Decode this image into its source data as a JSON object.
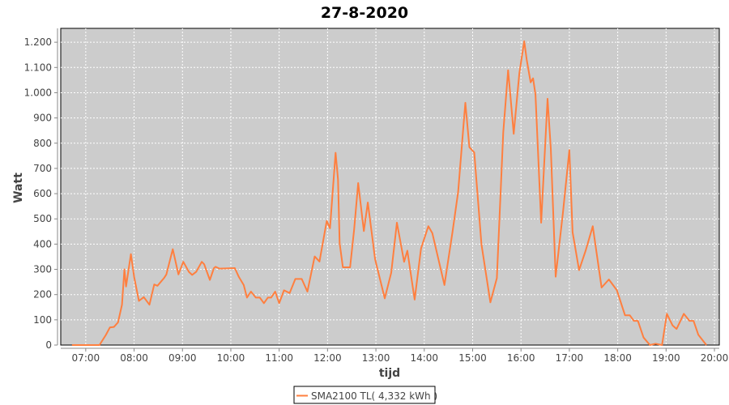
{
  "chart_data": {
    "type": "line",
    "title": "27-8-2020",
    "xlabel": "tijd",
    "ylabel": "Watt",
    "xlim": [
      "06:29",
      "20:06"
    ],
    "ylim": [
      0,
      1255
    ],
    "x_ticks": [
      "07:00",
      "08:00",
      "09:00",
      "10:00",
      "11:00",
      "12:00",
      "13:00",
      "14:00",
      "15:00",
      "16:00",
      "17:00",
      "18:00",
      "19:00",
      "20:00"
    ],
    "y_ticks": [
      0,
      100,
      200,
      300,
      400,
      500,
      600,
      700,
      800,
      900,
      1000,
      1100,
      1200
    ],
    "y_tick_labels": [
      "0",
      "100",
      "200",
      "300",
      "400",
      "500",
      "600",
      "700",
      "800",
      "900",
      "1.000",
      "1.100",
      "1.200"
    ],
    "grid": true,
    "legend_position": "bottom",
    "plot_background": "#cccccc",
    "series": [
      {
        "name": "SMA2100 TL( 4,332 kWh )",
        "color": "#ff7f3f",
        "points": [
          [
            "06:43",
            0
          ],
          [
            "07:17",
            0
          ],
          [
            "07:25",
            40
          ],
          [
            "07:30",
            70
          ],
          [
            "07:35",
            72
          ],
          [
            "07:40",
            90
          ],
          [
            "07:45",
            160
          ],
          [
            "07:48",
            300
          ],
          [
            "07:50",
            232
          ],
          [
            "07:56",
            360
          ],
          [
            "08:00",
            270
          ],
          [
            "08:06",
            175
          ],
          [
            "08:12",
            190
          ],
          [
            "08:19",
            160
          ],
          [
            "08:25",
            240
          ],
          [
            "08:29",
            235
          ],
          [
            "08:37",
            265
          ],
          [
            "08:40",
            280
          ],
          [
            "08:48",
            380
          ],
          [
            "08:55",
            280
          ],
          [
            "09:01",
            330
          ],
          [
            "09:08",
            290
          ],
          [
            "09:12",
            278
          ],
          [
            "09:17",
            290
          ],
          [
            "09:24",
            330
          ],
          [
            "09:27",
            320
          ],
          [
            "09:34",
            258
          ],
          [
            "09:39",
            305
          ],
          [
            "09:41",
            310
          ],
          [
            "09:46",
            303
          ],
          [
            "10:05",
            305
          ],
          [
            "10:10",
            270
          ],
          [
            "10:16",
            238
          ],
          [
            "10:20",
            188
          ],
          [
            "10:25",
            212
          ],
          [
            "10:31",
            188
          ],
          [
            "10:36",
            188
          ],
          [
            "10:41",
            166
          ],
          [
            "10:46",
            188
          ],
          [
            "10:50",
            188
          ],
          [
            "10:55",
            212
          ],
          [
            "11:00",
            166
          ],
          [
            "11:06",
            217
          ],
          [
            "11:13",
            206
          ],
          [
            "11:20",
            262
          ],
          [
            "11:28",
            262
          ],
          [
            "11:35",
            212
          ],
          [
            "11:44",
            351
          ],
          [
            "11:50",
            331
          ],
          [
            "11:59",
            492
          ],
          [
            "12:03",
            463
          ],
          [
            "12:10",
            762
          ],
          [
            "12:13",
            656
          ],
          [
            "12:15",
            404
          ],
          [
            "12:19",
            308
          ],
          [
            "12:28",
            308
          ],
          [
            "12:33",
            458
          ],
          [
            "12:38",
            642
          ],
          [
            "12:45",
            452
          ],
          [
            "12:50",
            565
          ],
          [
            "12:59",
            340
          ],
          [
            "13:11",
            185
          ],
          [
            "13:19",
            287
          ],
          [
            "13:26",
            485
          ],
          [
            "13:35",
            330
          ],
          [
            "13:39",
            374
          ],
          [
            "13:48",
            180
          ],
          [
            "13:56",
            383
          ],
          [
            "14:05",
            471
          ],
          [
            "14:10",
            444
          ],
          [
            "14:25",
            238
          ],
          [
            "14:35",
            447
          ],
          [
            "14:42",
            607
          ],
          [
            "14:49",
            886
          ],
          [
            "14:51",
            960
          ],
          [
            "14:56",
            784
          ],
          [
            "15:02",
            763
          ],
          [
            "15:11",
            399
          ],
          [
            "15:22",
            169
          ],
          [
            "15:30",
            265
          ],
          [
            "15:38",
            843
          ],
          [
            "15:44",
            1089
          ],
          [
            "15:47",
            982
          ],
          [
            "15:51",
            837
          ],
          [
            "15:58",
            1078
          ],
          [
            "16:04",
            1204
          ],
          [
            "16:07",
            1132
          ],
          [
            "16:12",
            1041
          ],
          [
            "16:15",
            1057
          ],
          [
            "16:18",
            992
          ],
          [
            "16:25",
            485
          ],
          [
            "16:33",
            976
          ],
          [
            "16:37",
            779
          ],
          [
            "16:43",
            271
          ],
          [
            "16:52",
            522
          ],
          [
            "17:00",
            773
          ],
          [
            "17:04",
            447
          ],
          [
            "17:12",
            297
          ],
          [
            "17:20",
            372
          ],
          [
            "17:29",
            471
          ],
          [
            "17:40",
            228
          ],
          [
            "17:49",
            260
          ],
          [
            "17:59",
            217
          ],
          [
            "18:09",
            118
          ],
          [
            "18:15",
            118
          ],
          [
            "18:20",
            96
          ],
          [
            "18:25",
            96
          ],
          [
            "18:32",
            30
          ],
          [
            "18:40",
            0
          ],
          [
            "18:47",
            5
          ],
          [
            "18:55",
            0
          ],
          [
            "19:01",
            124
          ],
          [
            "19:08",
            78
          ],
          [
            "19:13",
            64
          ],
          [
            "19:22",
            124
          ],
          [
            "19:29",
            96
          ],
          [
            "19:34",
            96
          ],
          [
            "19:40",
            41
          ],
          [
            "19:50",
            0
          ]
        ]
      }
    ]
  }
}
